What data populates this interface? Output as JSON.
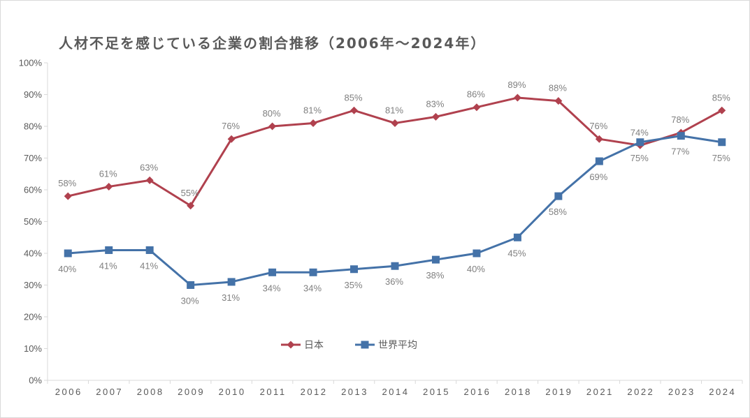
{
  "chart_data": {
    "type": "line",
    "title": "人材不足を感じている企業の割合推移（2006年～2024年）",
    "categories": [
      "2006",
      "2007",
      "2008",
      "2009",
      "2010",
      "2011",
      "2012",
      "2013",
      "2014",
      "2015",
      "2016",
      "2018",
      "2019",
      "2021",
      "2022",
      "2023",
      "2024"
    ],
    "ylim": [
      0,
      100
    ],
    "yticks": [
      "0%",
      "10%",
      "20%",
      "30%",
      "40%",
      "50%",
      "60%",
      "70%",
      "80%",
      "90%",
      "100%"
    ],
    "grid": false,
    "legend_position": "center",
    "series": [
      {
        "name": "日本",
        "color": "#b0414e",
        "marker": "diamond",
        "label_position": "above",
        "values": [
          58,
          61,
          63,
          55,
          76,
          80,
          81,
          85,
          81,
          83,
          86,
          89,
          88,
          76,
          74,
          78,
          85
        ],
        "labels": [
          "58%",
          "61%",
          "63%",
          "55%",
          "76%",
          "80%",
          "81%",
          "85%",
          "81%",
          "83%",
          "86%",
          "89%",
          "88%",
          "76%",
          "74%",
          "78%",
          "85%"
        ]
      },
      {
        "name": "世界平均",
        "color": "#4472a8",
        "marker": "square",
        "label_position": "below",
        "values": [
          40,
          41,
          41,
          30,
          31,
          34,
          34,
          35,
          36,
          38,
          40,
          45,
          58,
          69,
          75,
          77,
          75
        ],
        "labels": [
          "40%",
          "41%",
          "41%",
          "30%",
          "31%",
          "34%",
          "34%",
          "35%",
          "36%",
          "38%",
          "40%",
          "45%",
          "58%",
          "69%",
          "75%",
          "77%",
          "75%"
        ]
      }
    ]
  }
}
